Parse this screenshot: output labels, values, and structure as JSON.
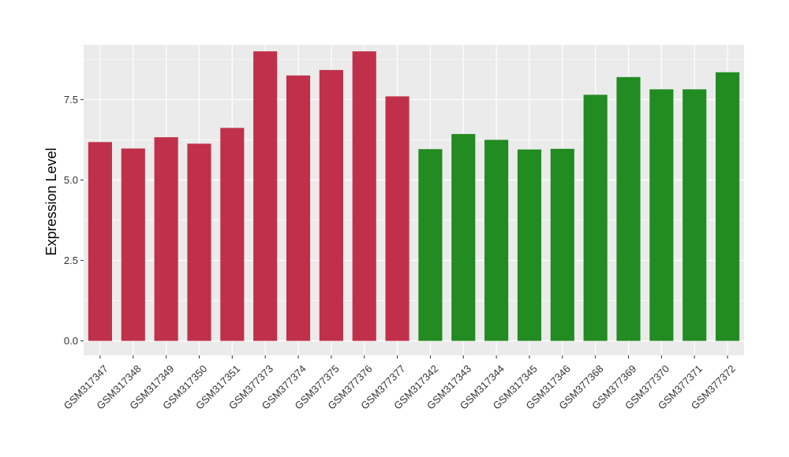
{
  "chart_data": {
    "type": "bar",
    "title": "",
    "xlabel": "",
    "ylabel": "Expression Level",
    "ylim": [
      -0.45,
      9.2
    ],
    "yticks": [
      "0.0",
      "2.5",
      "5.0",
      "7.5"
    ],
    "grid": true,
    "legend": "none",
    "colors": {
      "group_a": "#C0304A",
      "group_b": "#228B22",
      "panel_bg": "#EBEBEB",
      "grid": "#FFFFFF"
    },
    "categories": [
      "GSM317347",
      "GSM317348",
      "GSM317349",
      "GSM317350",
      "GSM317351",
      "GSM377373",
      "GSM377374",
      "GSM377375",
      "GSM377376",
      "GSM377377",
      "GSM317342",
      "GSM317343",
      "GSM317344",
      "GSM317345",
      "GSM317346",
      "GSM377368",
      "GSM377369",
      "GSM377370",
      "GSM377371",
      "GSM377372"
    ],
    "values": [
      6.18,
      5.98,
      6.33,
      6.13,
      6.62,
      9.0,
      8.25,
      8.42,
      9.0,
      7.6,
      5.96,
      6.43,
      6.25,
      5.95,
      5.97,
      7.65,
      8.2,
      7.82,
      7.82,
      8.35
    ],
    "groups": [
      "a",
      "a",
      "a",
      "a",
      "a",
      "a",
      "a",
      "a",
      "a",
      "a",
      "b",
      "b",
      "b",
      "b",
      "b",
      "b",
      "b",
      "b",
      "b",
      "b"
    ]
  }
}
